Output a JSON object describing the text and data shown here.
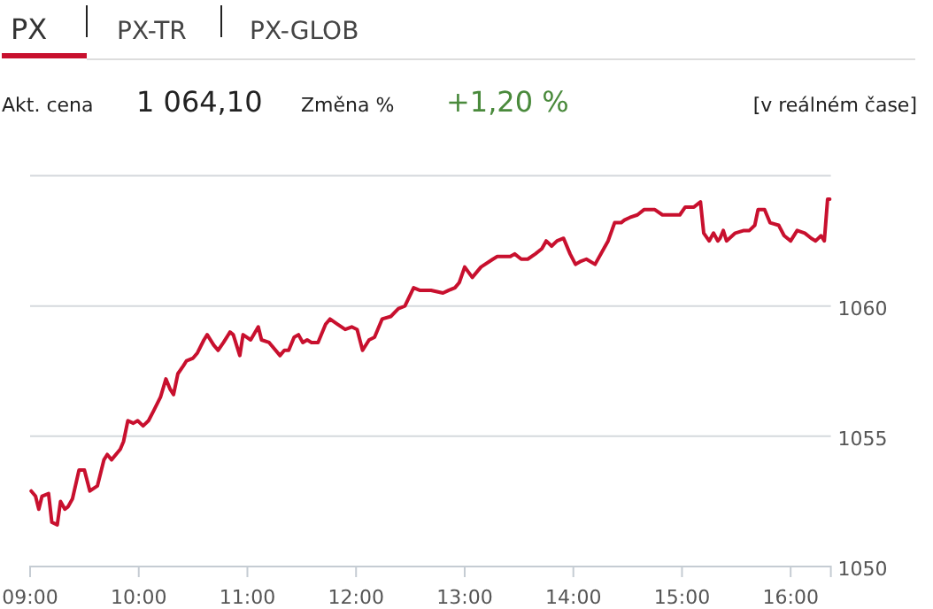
{
  "chart_data": {
    "type": "line",
    "title": "PX",
    "annotations": [
      "PX-TR",
      "PX-GLOB",
      "Akt. cena",
      "1 064,10",
      "Změna %",
      "+1,20 %",
      "[v reálném čase]"
    ],
    "x": [
      9.01,
      9.05,
      9.08,
      9.11,
      9.17,
      9.2,
      9.25,
      9.28,
      9.32,
      9.35,
      9.39,
      9.45,
      9.5,
      9.55,
      9.62,
      9.68,
      9.71,
      9.75,
      9.83,
      9.86,
      9.9,
      9.95,
      9.99,
      10.04,
      10.09,
      10.14,
      10.2,
      10.25,
      10.29,
      10.32,
      10.36,
      10.41,
      10.44,
      10.5,
      10.54,
      10.6,
      10.63,
      10.69,
      10.73,
      10.78,
      10.84,
      10.87,
      10.93,
      10.96,
      11.03,
      11.1,
      11.13,
      11.2,
      11.3,
      11.34,
      11.38,
      11.43,
      11.47,
      11.51,
      11.55,
      11.59,
      11.65,
      11.72,
      11.76,
      11.83,
      11.9,
      11.96,
      12.01,
      12.06,
      12.12,
      12.17,
      12.24,
      12.32,
      12.39,
      12.45,
      12.53,
      12.59,
      12.69,
      12.8,
      12.85,
      12.91,
      12.95,
      13.0,
      13.07,
      13.15,
      13.26,
      13.3,
      13.42,
      13.46,
      13.52,
      13.58,
      13.65,
      13.71,
      13.75,
      13.8,
      13.85,
      13.91,
      13.97,
      14.02,
      14.06,
      14.12,
      14.2,
      14.28,
      14.32,
      14.38,
      14.44,
      14.47,
      14.52,
      14.59,
      14.65,
      14.75,
      14.82,
      14.88,
      14.98,
      15.03,
      15.11,
      15.17,
      15.2,
      15.25,
      15.29,
      15.33,
      15.35,
      15.38,
      15.41,
      15.49,
      15.57,
      15.62,
      15.67,
      15.7,
      15.76,
      15.81,
      15.89,
      15.94,
      16.0,
      16.06,
      16.13,
      16.19,
      16.23,
      16.28,
      16.31,
      16.34,
      16.36
    ],
    "series": [
      {
        "color": "#c8102e",
        "values": [
          1052.9,
          1052.7,
          1052.2,
          1052.7,
          1052.8,
          1051.7,
          1051.6,
          1052.5,
          1052.2,
          1052.3,
          1052.6,
          1053.7,
          1053.7,
          1052.9,
          1053.1,
          1054.1,
          1054.3,
          1054.1,
          1054.5,
          1054.8,
          1055.6,
          1055.5,
          1055.6,
          1055.4,
          1055.6,
          1056.0,
          1056.5,
          1057.2,
          1056.8,
          1056.6,
          1057.4,
          1057.7,
          1057.9,
          1058.0,
          1058.2,
          1058.7,
          1058.9,
          1058.5,
          1058.3,
          1058.6,
          1059.0,
          1058.9,
          1058.1,
          1058.9,
          1058.7,
          1059.2,
          1058.7,
          1058.6,
          1058.1,
          1058.3,
          1058.3,
          1058.8,
          1058.9,
          1058.6,
          1058.7,
          1058.6,
          1058.6,
          1059.3,
          1059.5,
          1059.3,
          1059.1,
          1059.2,
          1059.1,
          1058.3,
          1058.7,
          1058.8,
          1059.5,
          1059.6,
          1059.9,
          1060.0,
          1060.7,
          1060.6,
          1060.6,
          1060.5,
          1060.6,
          1060.7,
          1060.9,
          1061.5,
          1061.1,
          1061.5,
          1061.8,
          1061.9,
          1061.9,
          1062.0,
          1061.8,
          1061.8,
          1062.0,
          1062.2,
          1062.5,
          1062.3,
          1062.5,
          1062.6,
          1062.0,
          1061.6,
          1061.7,
          1061.8,
          1061.6,
          1062.2,
          1062.5,
          1063.2,
          1063.2,
          1063.3,
          1063.4,
          1063.5,
          1063.7,
          1063.7,
          1063.5,
          1063.5,
          1063.5,
          1063.8,
          1063.8,
          1064.0,
          1062.8,
          1062.5,
          1062.8,
          1062.5,
          1062.6,
          1062.9,
          1062.5,
          1062.8,
          1062.9,
          1062.9,
          1063.1,
          1063.7,
          1063.7,
          1063.2,
          1063.1,
          1062.7,
          1062.5,
          1062.9,
          1062.8,
          1062.6,
          1062.5,
          1062.7,
          1062.5,
          1064.1,
          1064.1
        ]
      }
    ],
    "xlim": [
      9,
      16.37
    ],
    "xticks": [
      {
        "value": 9,
        "label": "09:00"
      },
      {
        "value": 10,
        "label": "10:00"
      },
      {
        "value": 11,
        "label": "11:00"
      },
      {
        "value": 12,
        "label": "12:00"
      },
      {
        "value": 13,
        "label": "13:00"
      },
      {
        "value": 14,
        "label": "14:00"
      },
      {
        "value": 15,
        "label": "15:00"
      },
      {
        "value": 16,
        "label": "16:00"
      }
    ],
    "ylim": [
      1050,
      1065
    ],
    "yticks": [
      1050,
      1055,
      1060,
      {
        "value": 1065,
        "label": null
      }
    ],
    "grid": "y",
    "marker": "none",
    "line_style": "solid"
  }
}
